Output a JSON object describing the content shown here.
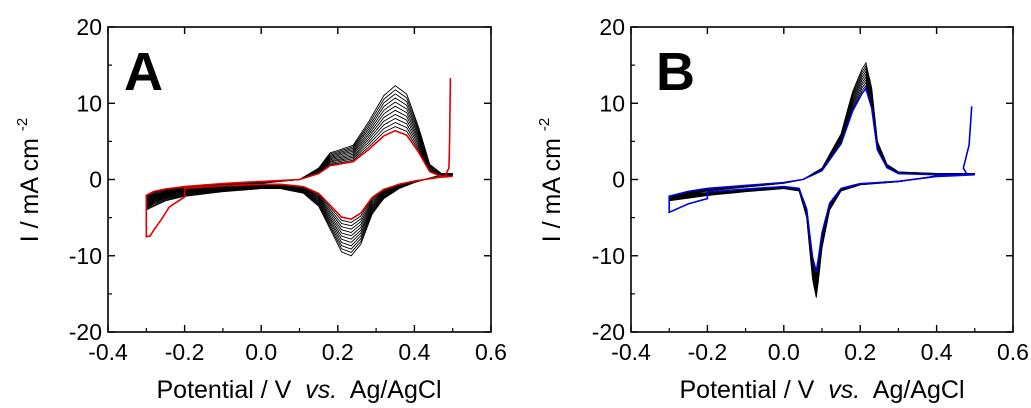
{
  "figure": {
    "panels": [
      {
        "letter": "A",
        "xlabel": "Potential / V",
        "xlabel_italic": "vs.",
        "xlabel_ref": "Ag/AgCl",
        "ylabel_main": "I / mA cm",
        "ylabel_exp": "-2"
      },
      {
        "letter": "B",
        "xlabel": "Potential / V",
        "xlabel_italic": "vs.",
        "xlabel_ref": "Ag/AgCl",
        "ylabel_main": "I / mA cm",
        "ylabel_exp": "-2"
      }
    ]
  },
  "chart_data": [
    {
      "type": "line",
      "panel": "A",
      "title": "",
      "xlabel": "Potential / V vs. Ag/AgCl",
      "ylabel": "I / mA cm-2",
      "xlim": [
        -0.4,
        0.6
      ],
      "ylim": [
        -20,
        20
      ],
      "xticks": [
        -0.4,
        -0.2,
        0.0,
        0.2,
        0.4,
        0.6
      ],
      "xtick_labels": [
        "-0.4",
        "-0.2",
        "0.0",
        "0.2",
        "0.4",
        "0.6"
      ],
      "yticks": [
        -20,
        -10,
        0,
        10,
        20
      ],
      "ytick_labels": [
        "-20",
        "-10",
        "0",
        "10",
        "20"
      ],
      "grid": false,
      "legend": "none",
      "series_color": "#000000",
      "highlight_color": "#e00000",
      "cycles": {
        "count": 12,
        "scale_first": 1.0,
        "scale_last": 0.52,
        "highlight_index": 11
      },
      "curve": {
        "anodic": [
          [
            -0.3,
            -4.0
          ],
          [
            -0.28,
            -3.0
          ],
          [
            -0.25,
            -2.4
          ],
          [
            -0.2,
            -1.8
          ],
          [
            -0.1,
            -1.0
          ],
          [
            0.0,
            -0.5
          ],
          [
            0.1,
            0.0
          ],
          [
            0.15,
            1.5
          ],
          [
            0.18,
            3.5
          ],
          [
            0.2,
            3.8
          ],
          [
            0.24,
            4.5
          ],
          [
            0.28,
            7.5
          ],
          [
            0.32,
            11.0
          ],
          [
            0.35,
            12.3
          ],
          [
            0.38,
            11.2
          ],
          [
            0.41,
            7.0
          ],
          [
            0.44,
            2.0
          ],
          [
            0.47,
            0.8
          ],
          [
            0.5,
            0.8
          ]
        ],
        "cathodic": [
          [
            0.5,
            0.8
          ],
          [
            0.47,
            0.6
          ],
          [
            0.44,
            0.2
          ],
          [
            0.4,
            -0.4
          ],
          [
            0.36,
            -1.2
          ],
          [
            0.32,
            -2.5
          ],
          [
            0.29,
            -4.5
          ],
          [
            0.26,
            -8.5
          ],
          [
            0.235,
            -10.0
          ],
          [
            0.21,
            -9.5
          ],
          [
            0.18,
            -6.5
          ],
          [
            0.15,
            -3.5
          ],
          [
            0.11,
            -1.8
          ],
          [
            0.05,
            -1.2
          ],
          [
            0.0,
            -1.2
          ],
          [
            -0.1,
            -1.6
          ],
          [
            -0.2,
            -2.2
          ],
          [
            -0.25,
            -2.8
          ],
          [
            -0.3,
            -4.0
          ]
        ]
      },
      "highlight_overrides": {
        "cathodic_tail": [
          [
            -0.2,
            -2.3
          ],
          [
            -0.24,
            -3.6
          ],
          [
            -0.26,
            -5.2
          ],
          [
            -0.28,
            -6.6
          ],
          [
            -0.29,
            -7.4
          ],
          [
            -0.3,
            -7.5
          ]
        ],
        "anodic_tail": [
          [
            0.49,
            1.5
          ],
          [
            0.492,
            5.0
          ],
          [
            0.494,
            13.3
          ]
        ]
      }
    },
    {
      "type": "line",
      "panel": "B",
      "title": "",
      "xlabel": "Potential / V vs. Ag/AgCl",
      "ylabel": "I / mA cm-2",
      "xlim": [
        -0.4,
        0.6
      ],
      "ylim": [
        -20,
        20
      ],
      "xticks": [
        -0.4,
        -0.2,
        0.0,
        0.2,
        0.4,
        0.6
      ],
      "xtick_labels": [
        "-0.4",
        "-0.2",
        "0.0",
        "0.2",
        "0.4",
        "0.6"
      ],
      "yticks": [
        -20,
        -10,
        0,
        10,
        20
      ],
      "ytick_labels": [
        "-20",
        "-10",
        "0",
        "10",
        "20"
      ],
      "grid": false,
      "legend": "none",
      "series_color": "#000000",
      "highlight_color": "#0000e0",
      "cycles": {
        "count": 10,
        "scale_first": 1.0,
        "scale_last": 0.78,
        "highlight_index": 9
      },
      "curve": {
        "anodic": [
          [
            -0.3,
            -2.8
          ],
          [
            -0.25,
            -2.0
          ],
          [
            -0.2,
            -1.5
          ],
          [
            -0.1,
            -1.0
          ],
          [
            0.0,
            -0.5
          ],
          [
            0.05,
            0.0
          ],
          [
            0.1,
            1.5
          ],
          [
            0.15,
            6.0
          ],
          [
            0.18,
            11.5
          ],
          [
            0.205,
            14.5
          ],
          [
            0.215,
            15.3
          ],
          [
            0.23,
            12.0
          ],
          [
            0.245,
            5.0
          ],
          [
            0.27,
            2.0
          ],
          [
            0.3,
            1.0
          ],
          [
            0.4,
            0.8
          ],
          [
            0.5,
            0.8
          ]
        ],
        "cathodic": [
          [
            0.5,
            0.8
          ],
          [
            0.4,
            0.5
          ],
          [
            0.3,
            -0.3
          ],
          [
            0.2,
            -0.7
          ],
          [
            0.15,
            -1.5
          ],
          [
            0.12,
            -4.0
          ],
          [
            0.1,
            -9.0
          ],
          [
            0.09,
            -13.5
          ],
          [
            0.085,
            -15.5
          ],
          [
            0.075,
            -13.0
          ],
          [
            0.06,
            -5.0
          ],
          [
            0.04,
            -1.5
          ],
          [
            0.0,
            -1.2
          ],
          [
            -0.1,
            -1.6
          ],
          [
            -0.2,
            -2.1
          ],
          [
            -0.3,
            -2.8
          ]
        ]
      },
      "highlight_overrides": {
        "cathodic_tail": [
          [
            -0.2,
            -2.5
          ],
          [
            -0.25,
            -3.2
          ],
          [
            -0.3,
            -4.3
          ]
        ],
        "anodic_tail": [
          [
            0.47,
            1.5
          ],
          [
            0.485,
            4.5
          ],
          [
            0.492,
            9.6
          ]
        ]
      }
    }
  ]
}
